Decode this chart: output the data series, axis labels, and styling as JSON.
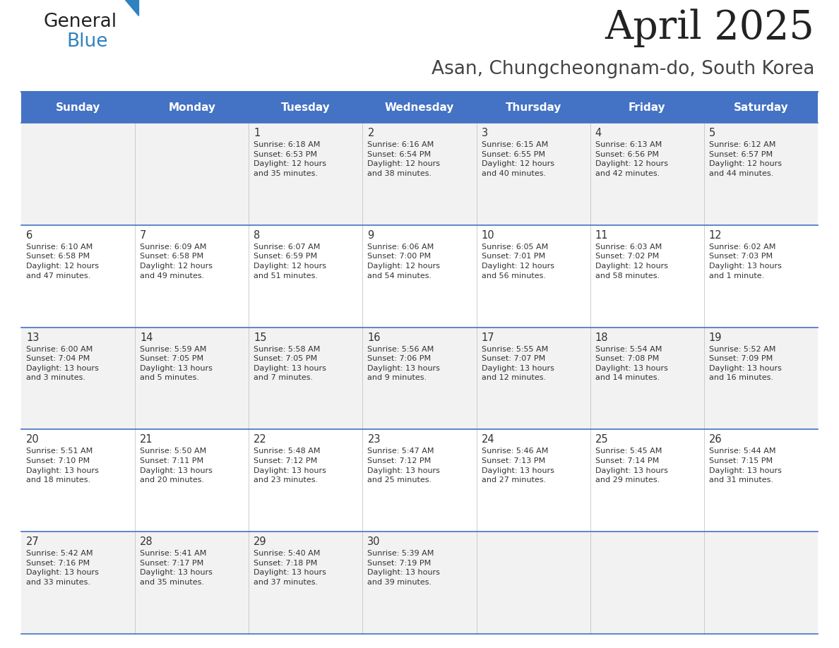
{
  "title": "April 2025",
  "subtitle": "Asan, Chungcheongnam-do, South Korea",
  "header_bg": "#4472C4",
  "header_text_color": "#FFFFFF",
  "cell_bg_even": "#F2F2F2",
  "cell_bg_odd": "#FFFFFF",
  "divider_color": "#4472C4",
  "text_color": "#333333",
  "days_of_week": [
    "Sunday",
    "Monday",
    "Tuesday",
    "Wednesday",
    "Thursday",
    "Friday",
    "Saturday"
  ],
  "calendar": [
    [
      "",
      "",
      "1\nSunrise: 6:18 AM\nSunset: 6:53 PM\nDaylight: 12 hours\nand 35 minutes.",
      "2\nSunrise: 6:16 AM\nSunset: 6:54 PM\nDaylight: 12 hours\nand 38 minutes.",
      "3\nSunrise: 6:15 AM\nSunset: 6:55 PM\nDaylight: 12 hours\nand 40 minutes.",
      "4\nSunrise: 6:13 AM\nSunset: 6:56 PM\nDaylight: 12 hours\nand 42 minutes.",
      "5\nSunrise: 6:12 AM\nSunset: 6:57 PM\nDaylight: 12 hours\nand 44 minutes."
    ],
    [
      "6\nSunrise: 6:10 AM\nSunset: 6:58 PM\nDaylight: 12 hours\nand 47 minutes.",
      "7\nSunrise: 6:09 AM\nSunset: 6:58 PM\nDaylight: 12 hours\nand 49 minutes.",
      "8\nSunrise: 6:07 AM\nSunset: 6:59 PM\nDaylight: 12 hours\nand 51 minutes.",
      "9\nSunrise: 6:06 AM\nSunset: 7:00 PM\nDaylight: 12 hours\nand 54 minutes.",
      "10\nSunrise: 6:05 AM\nSunset: 7:01 PM\nDaylight: 12 hours\nand 56 minutes.",
      "11\nSunrise: 6:03 AM\nSunset: 7:02 PM\nDaylight: 12 hours\nand 58 minutes.",
      "12\nSunrise: 6:02 AM\nSunset: 7:03 PM\nDaylight: 13 hours\nand 1 minute."
    ],
    [
      "13\nSunrise: 6:00 AM\nSunset: 7:04 PM\nDaylight: 13 hours\nand 3 minutes.",
      "14\nSunrise: 5:59 AM\nSunset: 7:05 PM\nDaylight: 13 hours\nand 5 minutes.",
      "15\nSunrise: 5:58 AM\nSunset: 7:05 PM\nDaylight: 13 hours\nand 7 minutes.",
      "16\nSunrise: 5:56 AM\nSunset: 7:06 PM\nDaylight: 13 hours\nand 9 minutes.",
      "17\nSunrise: 5:55 AM\nSunset: 7:07 PM\nDaylight: 13 hours\nand 12 minutes.",
      "18\nSunrise: 5:54 AM\nSunset: 7:08 PM\nDaylight: 13 hours\nand 14 minutes.",
      "19\nSunrise: 5:52 AM\nSunset: 7:09 PM\nDaylight: 13 hours\nand 16 minutes."
    ],
    [
      "20\nSunrise: 5:51 AM\nSunset: 7:10 PM\nDaylight: 13 hours\nand 18 minutes.",
      "21\nSunrise: 5:50 AM\nSunset: 7:11 PM\nDaylight: 13 hours\nand 20 minutes.",
      "22\nSunrise: 5:48 AM\nSunset: 7:12 PM\nDaylight: 13 hours\nand 23 minutes.",
      "23\nSunrise: 5:47 AM\nSunset: 7:12 PM\nDaylight: 13 hours\nand 25 minutes.",
      "24\nSunrise: 5:46 AM\nSunset: 7:13 PM\nDaylight: 13 hours\nand 27 minutes.",
      "25\nSunrise: 5:45 AM\nSunset: 7:14 PM\nDaylight: 13 hours\nand 29 minutes.",
      "26\nSunrise: 5:44 AM\nSunset: 7:15 PM\nDaylight: 13 hours\nand 31 minutes."
    ],
    [
      "27\nSunrise: 5:42 AM\nSunset: 7:16 PM\nDaylight: 13 hours\nand 33 minutes.",
      "28\nSunrise: 5:41 AM\nSunset: 7:17 PM\nDaylight: 13 hours\nand 35 minutes.",
      "29\nSunrise: 5:40 AM\nSunset: 7:18 PM\nDaylight: 13 hours\nand 37 minutes.",
      "30\nSunrise: 5:39 AM\nSunset: 7:19 PM\nDaylight: 13 hours\nand 39 minutes.",
      "",
      "",
      ""
    ]
  ],
  "logo_color_general": "#222222",
  "logo_color_blue": "#2E82BE",
  "logo_triangle_color": "#2E82BE",
  "fig_width": 11.88,
  "fig_height": 9.18,
  "dpi": 100
}
